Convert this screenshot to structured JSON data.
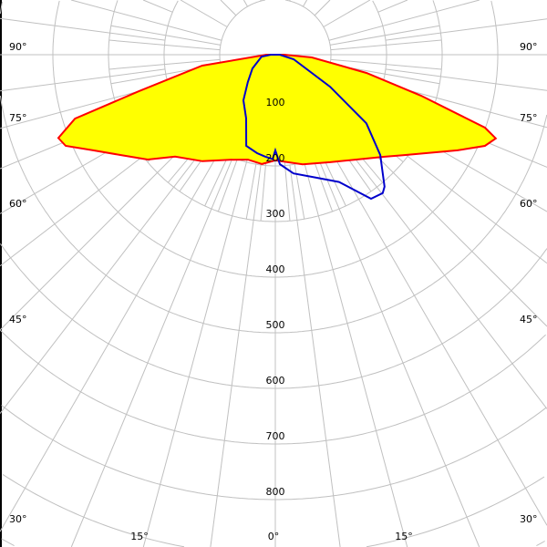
{
  "chart_data": {
    "type": "polar-line",
    "angle_unit": "deg",
    "angle_ticks_left": [
      "90°",
      "75°",
      "60°",
      "45°",
      "30°"
    ],
    "angle_ticks_bottom": [
      "15°",
      "0°",
      "15°"
    ],
    "angle_ticks_right": [
      "90°",
      "75°",
      "60°",
      "45°",
      "30°"
    ],
    "radial_ticks": [
      "100",
      "200",
      "300",
      "400",
      "500",
      "600",
      "700",
      "800"
    ],
    "radial_max": 1000,
    "grid": true,
    "series": [
      {
        "color": "#ff0000",
        "fill": "#ffff00",
        "points": [
          [
            -90,
            16
          ],
          [
            -81.5,
            133
          ],
          [
            -75,
            254
          ],
          [
            -72.3,
            378
          ],
          [
            -69,
            418
          ],
          [
            -66.5,
            411
          ],
          [
            -62.3,
            370
          ],
          [
            -57.1,
            332
          ],
          [
            -50.6,
            297
          ],
          [
            -44.5,
            257
          ],
          [
            -34.4,
            232
          ],
          [
            -23.5,
            206
          ],
          [
            -14.6,
            195
          ],
          [
            -7,
            198
          ],
          [
            0,
            190
          ],
          [
            14,
            203
          ],
          [
            27,
            217
          ],
          [
            47,
            269
          ],
          [
            51.8,
            292
          ],
          [
            62.3,
            370
          ],
          [
            66.5,
            411
          ],
          [
            69.2,
            424
          ],
          [
            70.8,
            399
          ],
          [
            74.3,
            272
          ],
          [
            78.7,
            167
          ],
          [
            85.7,
            66
          ],
          [
            90,
            16
          ]
        ]
      },
      {
        "color": "#0000cc",
        "fill": "none",
        "points": [
          [
            -90,
            8
          ],
          [
            -82,
            25
          ],
          [
            -59,
            48
          ],
          [
            -45,
            70
          ],
          [
            -35,
            100
          ],
          [
            -24.6,
            126
          ],
          [
            -17.7,
            172
          ],
          [
            -10.5,
            180
          ],
          [
            -6,
            184
          ],
          [
            -1.5,
            188
          ],
          [
            0,
            172
          ],
          [
            2.4,
            197
          ],
          [
            8.7,
            216
          ],
          [
            18.4,
            233
          ],
          [
            26.6,
            256
          ],
          [
            33.6,
            311
          ],
          [
            37.8,
            315
          ],
          [
            39.6,
            308
          ],
          [
            46.3,
            261
          ],
          [
            53,
            205
          ],
          [
            59.7,
            114
          ],
          [
            76,
            34
          ],
          [
            90,
            8
          ]
        ]
      }
    ]
  }
}
